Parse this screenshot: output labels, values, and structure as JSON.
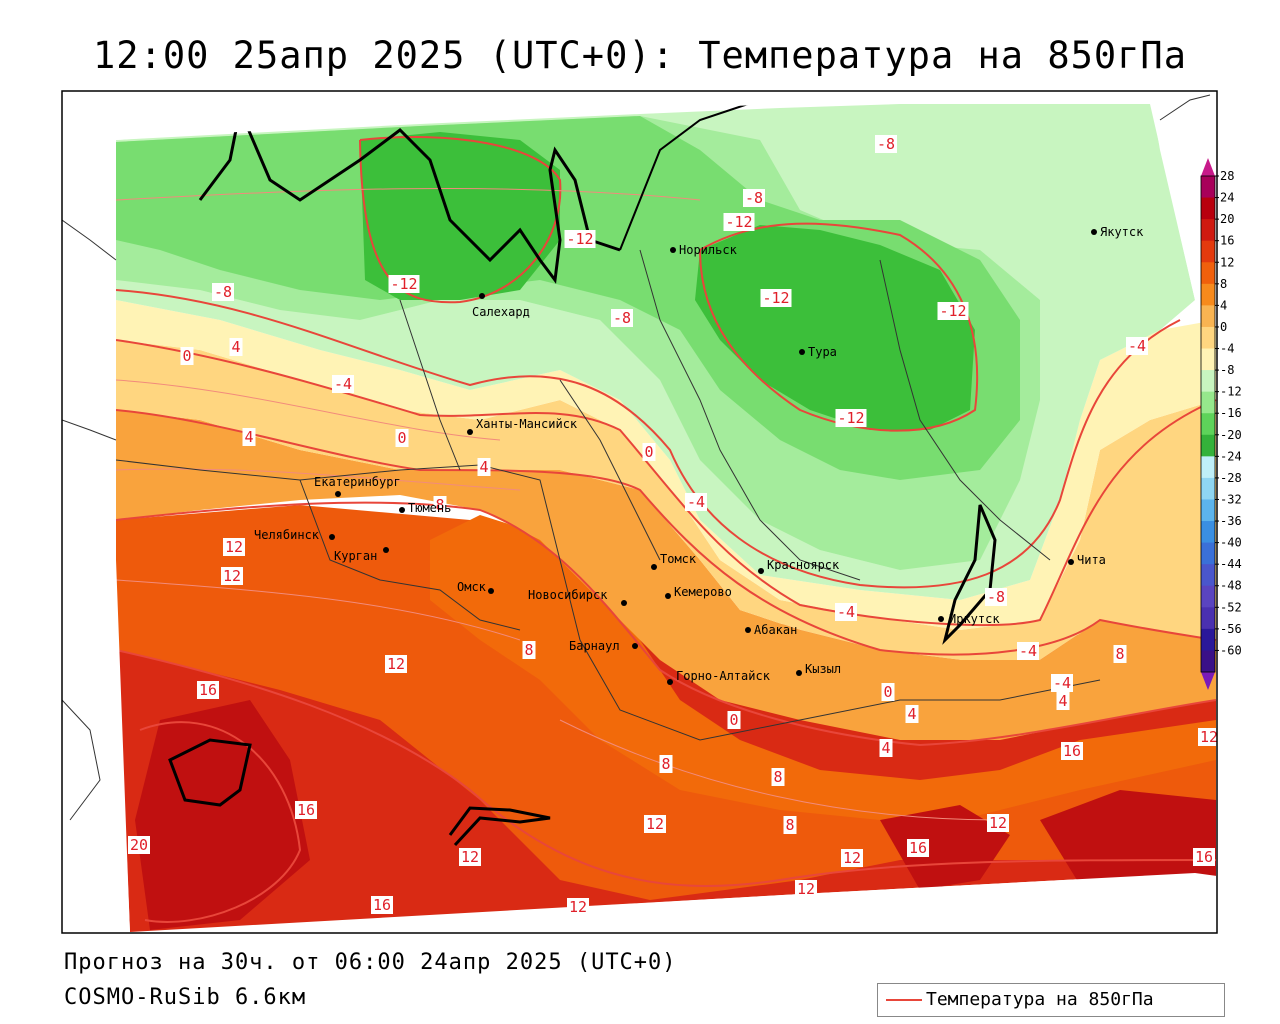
{
  "title": "12:00 25апр 2025 (UTC+0): Температура на 850гПа",
  "footer": {
    "forecast": "Прогноз на 30ч. от 06:00 24апр 2025 (UTC+0)",
    "model": "COSMO-RuSib 6.6км"
  },
  "legend": {
    "label": "Температура на 850гПа",
    "color": "#e8463a"
  },
  "colors": {
    "contour": "#e8463a",
    "green_lightest": "#c8f5c0",
    "green_light": "#a9eea0",
    "green_mid": "#72db6a",
    "green_dark": "#3cbf3a",
    "yellow_pale": "#fff5b8",
    "yellow": "#ffe088",
    "orange_light": "#f9b452",
    "orange": "#f7931e",
    "orange_dark": "#f06a0a",
    "red_orange": "#e9480c",
    "red": "#d92a14",
    "dark_red": "#c01010"
  },
  "cities": [
    {
      "name": "Якутск",
      "lon": 129.7,
      "lat": 62.0
    },
    {
      "name": "Норильск",
      "lon": 88.2,
      "lat": 69.3
    },
    {
      "name": "Салехард",
      "lon": 66.6,
      "lat": 66.5
    },
    {
      "name": "Тура",
      "lon": 100.2,
      "lat": 64.3
    },
    {
      "name": "Ханты-Мансийск",
      "lon": 69.0,
      "lat": 61.0
    },
    {
      "name": "Екатеринбург",
      "lon": 60.6,
      "lat": 56.8
    },
    {
      "name": "Тюмень",
      "lon": 65.5,
      "lat": 57.2
    },
    {
      "name": "Челябинск",
      "lon": 61.4,
      "lat": 55.2
    },
    {
      "name": "Курган",
      "lon": 65.3,
      "lat": 55.4
    },
    {
      "name": "Омск",
      "lon": 73.4,
      "lat": 55.0
    },
    {
      "name": "Новосибирск",
      "lon": 82.9,
      "lat": 55.0
    },
    {
      "name": "Томск",
      "lon": 84.9,
      "lat": 56.5
    },
    {
      "name": "Кемерово",
      "lon": 86.1,
      "lat": 55.4
    },
    {
      "name": "Красноярск",
      "lon": 92.9,
      "lat": 56.0
    },
    {
      "name": "Барнаул",
      "lon": 83.8,
      "lat": 53.3
    },
    {
      "name": "Абакан",
      "lon": 91.4,
      "lat": 53.7
    },
    {
      "name": "Горно-Алтайск",
      "lon": 85.9,
      "lat": 51.9
    },
    {
      "name": "Кызыл",
      "lon": 94.4,
      "lat": 51.7
    },
    {
      "name": "Иркутск",
      "lon": 104.3,
      "lat": 52.3
    },
    {
      "name": "Чита",
      "lon": 113.5,
      "lat": 52.0
    }
  ],
  "contour_labels": [
    {
      "value": "-8"
    },
    {
      "value": "-8"
    },
    {
      "value": "-12"
    },
    {
      "value": "-12"
    },
    {
      "value": "-12"
    },
    {
      "value": "-8"
    },
    {
      "value": "-8"
    },
    {
      "value": "-12"
    },
    {
      "value": "-12"
    },
    {
      "value": "-12"
    },
    {
      "value": "-4"
    },
    {
      "value": "-4"
    },
    {
      "value": "0"
    },
    {
      "value": "4"
    },
    {
      "value": "0"
    },
    {
      "value": "-4"
    },
    {
      "value": "0"
    },
    {
      "value": "4"
    },
    {
      "value": "8"
    },
    {
      "value": "4"
    },
    {
      "value": "-4"
    },
    {
      "value": "-8"
    },
    {
      "value": "-4"
    },
    {
      "value": "-4"
    },
    {
      "value": "8"
    },
    {
      "value": "12"
    },
    {
      "value": "8"
    },
    {
      "value": "12"
    },
    {
      "value": "16"
    },
    {
      "value": "0"
    },
    {
      "value": "4"
    },
    {
      "value": "4"
    },
    {
      "value": "0"
    },
    {
      "value": "4"
    },
    {
      "value": "16"
    },
    {
      "value": "8"
    },
    {
      "value": "8"
    },
    {
      "value": "8"
    },
    {
      "value": "16"
    },
    {
      "value": "12"
    },
    {
      "value": "12"
    },
    {
      "value": "12"
    },
    {
      "value": "16"
    },
    {
      "value": "20"
    },
    {
      "value": "12"
    },
    {
      "value": "12"
    },
    {
      "value": "16"
    },
    {
      "value": "12"
    },
    {
      "value": "16"
    },
    {
      "value": "12"
    },
    {
      "value": "0"
    },
    {
      "value": "4"
    },
    {
      "value": "12"
    }
  ],
  "color_scale": [
    {
      "label": "28",
      "color": "#a8005a"
    },
    {
      "label": "24",
      "color": "#b8000e"
    },
    {
      "label": "20",
      "color": "#cf1a10"
    },
    {
      "label": "16",
      "color": "#e33a0e"
    },
    {
      "label": "12",
      "color": "#f0600c"
    },
    {
      "label": "8",
      "color": "#f78a1c"
    },
    {
      "label": "4",
      "color": "#f9b452"
    },
    {
      "label": "0",
      "color": "#ffd680"
    },
    {
      "label": "-4",
      "color": "#fff3b5"
    },
    {
      "label": "-8",
      "color": "#c8f5c0"
    },
    {
      "label": "-12",
      "color": "#96e88c"
    },
    {
      "label": "-16",
      "color": "#5ed35a"
    },
    {
      "label": "-20",
      "color": "#34b23a"
    },
    {
      "label": "-24",
      "color": "#bfeff8"
    },
    {
      "label": "-28",
      "color": "#8fd6f2"
    },
    {
      "label": "-32",
      "color": "#5cb4ec"
    },
    {
      "label": "-36",
      "color": "#3a8fe2"
    },
    {
      "label": "-40",
      "color": "#3a70d8"
    },
    {
      "label": "-44",
      "color": "#4a56cc"
    },
    {
      "label": "-48",
      "color": "#5a44c0"
    },
    {
      "label": "-52",
      "color": "#4a30b0"
    },
    {
      "label": "-56",
      "color": "#2a189a"
    },
    {
      "label": "-60",
      "color": "#3a1088"
    },
    {
      "label": "",
      "color": "#7a1ab8"
    }
  ]
}
